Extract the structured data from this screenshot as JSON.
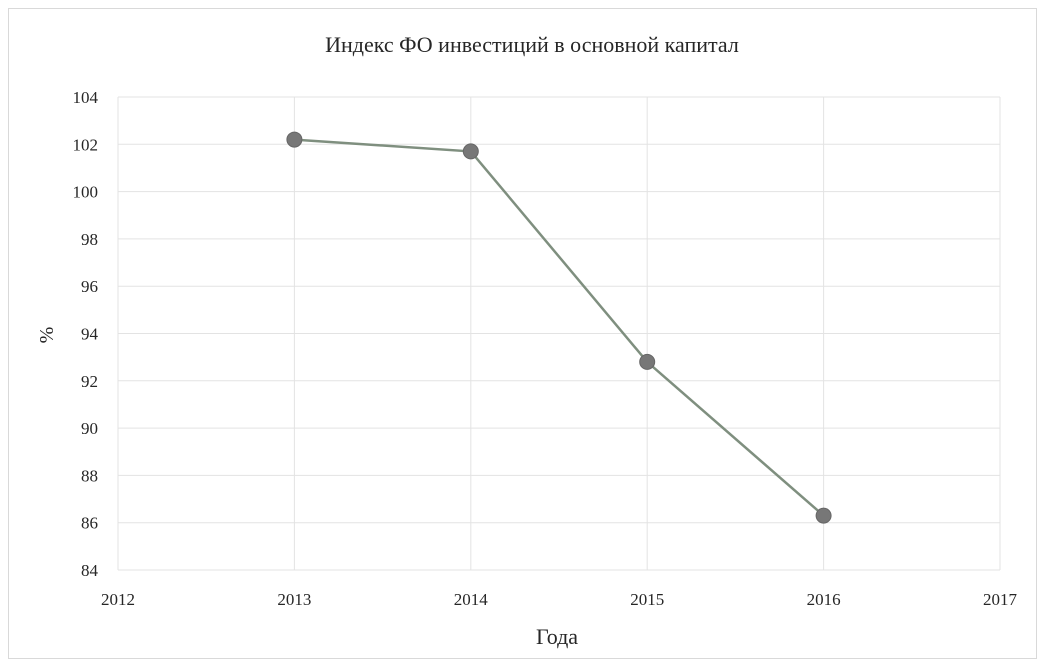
{
  "chart_data": {
    "type": "line",
    "title": "Индекс ФО инвестиций в основной капитал",
    "xlabel": "Года",
    "ylabel": "%",
    "xlim": [
      2012,
      2017
    ],
    "ylim": [
      84,
      104
    ],
    "x_ticks": [
      "2012",
      "2013",
      "2014",
      "2015",
      "2016",
      "2017"
    ],
    "y_ticks": [
      "84",
      "86",
      "88",
      "90",
      "92",
      "94",
      "96",
      "98",
      "100",
      "102",
      "104"
    ],
    "grid": true,
    "legend": "none",
    "series": [
      {
        "x": [
          2013,
          2014,
          2015,
          2016
        ],
        "y": [
          102.2,
          101.7,
          92.8,
          86.3
        ],
        "color": "#7f8f7f",
        "marker_color": "#777777"
      }
    ]
  }
}
